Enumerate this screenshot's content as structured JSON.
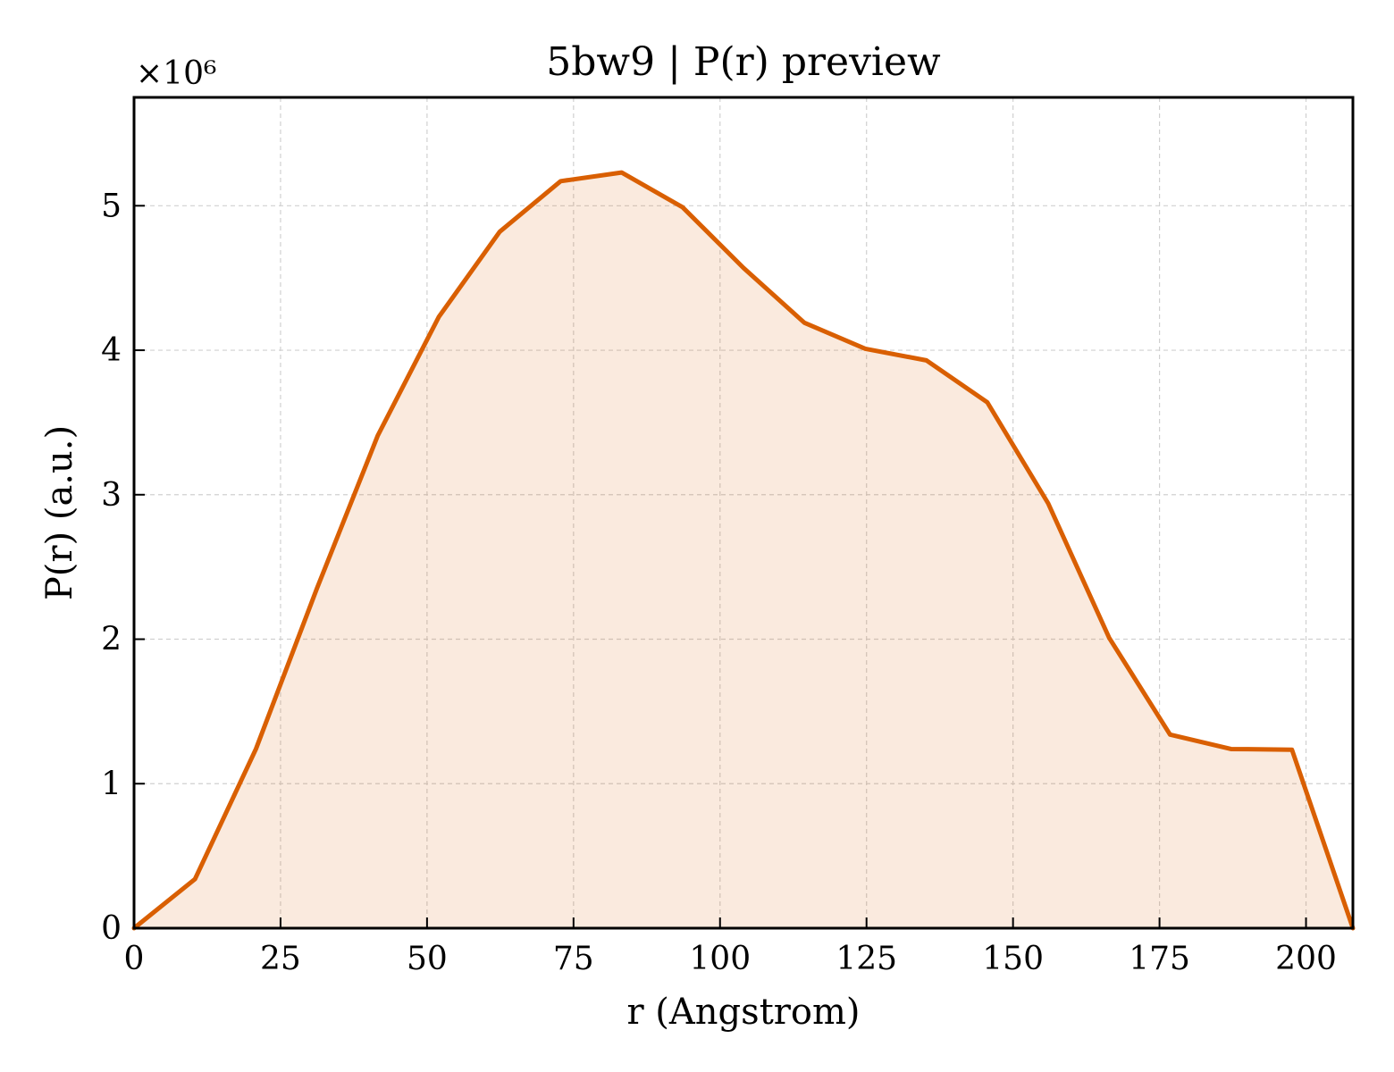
{
  "chart_data": {
    "type": "area",
    "title": "5bw9 | P(r) preview",
    "xlabel": "r (Angstrom)",
    "ylabel": "P(r) (a.u.)",
    "y_offset_label": "×10⁶",
    "y_scale": 1000000,
    "xlim": [
      0,
      208
    ],
    "ylim": [
      0,
      5750000
    ],
    "x_ticks": [
      0,
      25,
      50,
      75,
      100,
      125,
      150,
      175,
      200
    ],
    "x_tick_labels": [
      "0",
      "25",
      "50",
      "75",
      "100",
      "125",
      "150",
      "175",
      "200"
    ],
    "y_ticks": [
      0,
      1000000,
      2000000,
      3000000,
      4000000,
      5000000
    ],
    "y_tick_labels": [
      "0",
      "1",
      "2",
      "3",
      "4",
      "5"
    ],
    "grid": true,
    "series": [
      {
        "color": "#d95f02",
        "fill_color": "#d95f02",
        "fill_opacity": 0.13,
        "x": [
          0,
          10.4,
          20.8,
          31.2,
          41.6,
          52.0,
          62.4,
          72.8,
          83.2,
          93.6,
          104.0,
          114.4,
          124.8,
          135.2,
          145.6,
          156.0,
          166.4,
          176.8,
          187.2,
          197.6,
          208.0
        ],
        "y": [
          0,
          340000,
          1240000,
          2350000,
          3410000,
          4230000,
          4820000,
          5170000,
          5230000,
          4990000,
          4570000,
          4190000,
          4010000,
          3930000,
          3640000,
          2940000,
          2010000,
          1340000,
          1240000,
          1235000,
          0
        ]
      }
    ]
  }
}
